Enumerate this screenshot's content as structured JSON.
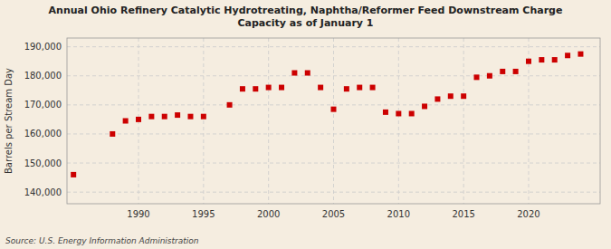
{
  "chart_data": {
    "type": "scatter",
    "title": "Annual Ohio Refinery Catalytic Hydrotreating, Naphtha/Reformer Feed Downstream Charge\nCapacity as of January 1",
    "ylabel": "Barrels per Stream Day",
    "source": "Source: U.S. Energy Information Administration",
    "x": [
      1985,
      1988,
      1989,
      1990,
      1991,
      1992,
      1993,
      1994,
      1995,
      1997,
      1998,
      1999,
      2000,
      2001,
      2002,
      2003,
      2004,
      2005,
      2006,
      2007,
      2008,
      2009,
      2010,
      2011,
      2012,
      2013,
      2014,
      2015,
      2016,
      2017,
      2018,
      2019,
      2020,
      2021,
      2022,
      2023,
      2024
    ],
    "values": [
      146000,
      160000,
      164500,
      165000,
      166000,
      166000,
      166500,
      166000,
      166000,
      170000,
      175500,
      175500,
      176000,
      176000,
      181000,
      181000,
      176000,
      168500,
      175500,
      176000,
      176000,
      167500,
      167000,
      167000,
      169500,
      172000,
      173000,
      173000,
      179500,
      180000,
      181500,
      181500,
      185000,
      185500,
      185500,
      187000,
      187500
    ],
    "color": "#cc0000",
    "marker": "square",
    "xlim": [
      1984.5,
      2025.5
    ],
    "xticks": [
      1990,
      1995,
      2000,
      2005,
      2010,
      2015,
      2020
    ],
    "ylim": [
      136000,
      193000
    ],
    "yticks": [
      {
        "value": 140000,
        "label": "140,000"
      },
      {
        "value": 150000,
        "label": "150,000"
      },
      {
        "value": 160000,
        "label": "160,000"
      },
      {
        "value": 170000,
        "label": "170,000"
      },
      {
        "value": 180000,
        "label": "180,000"
      },
      {
        "value": 190000,
        "label": "190,000"
      }
    ],
    "grid": true
  }
}
